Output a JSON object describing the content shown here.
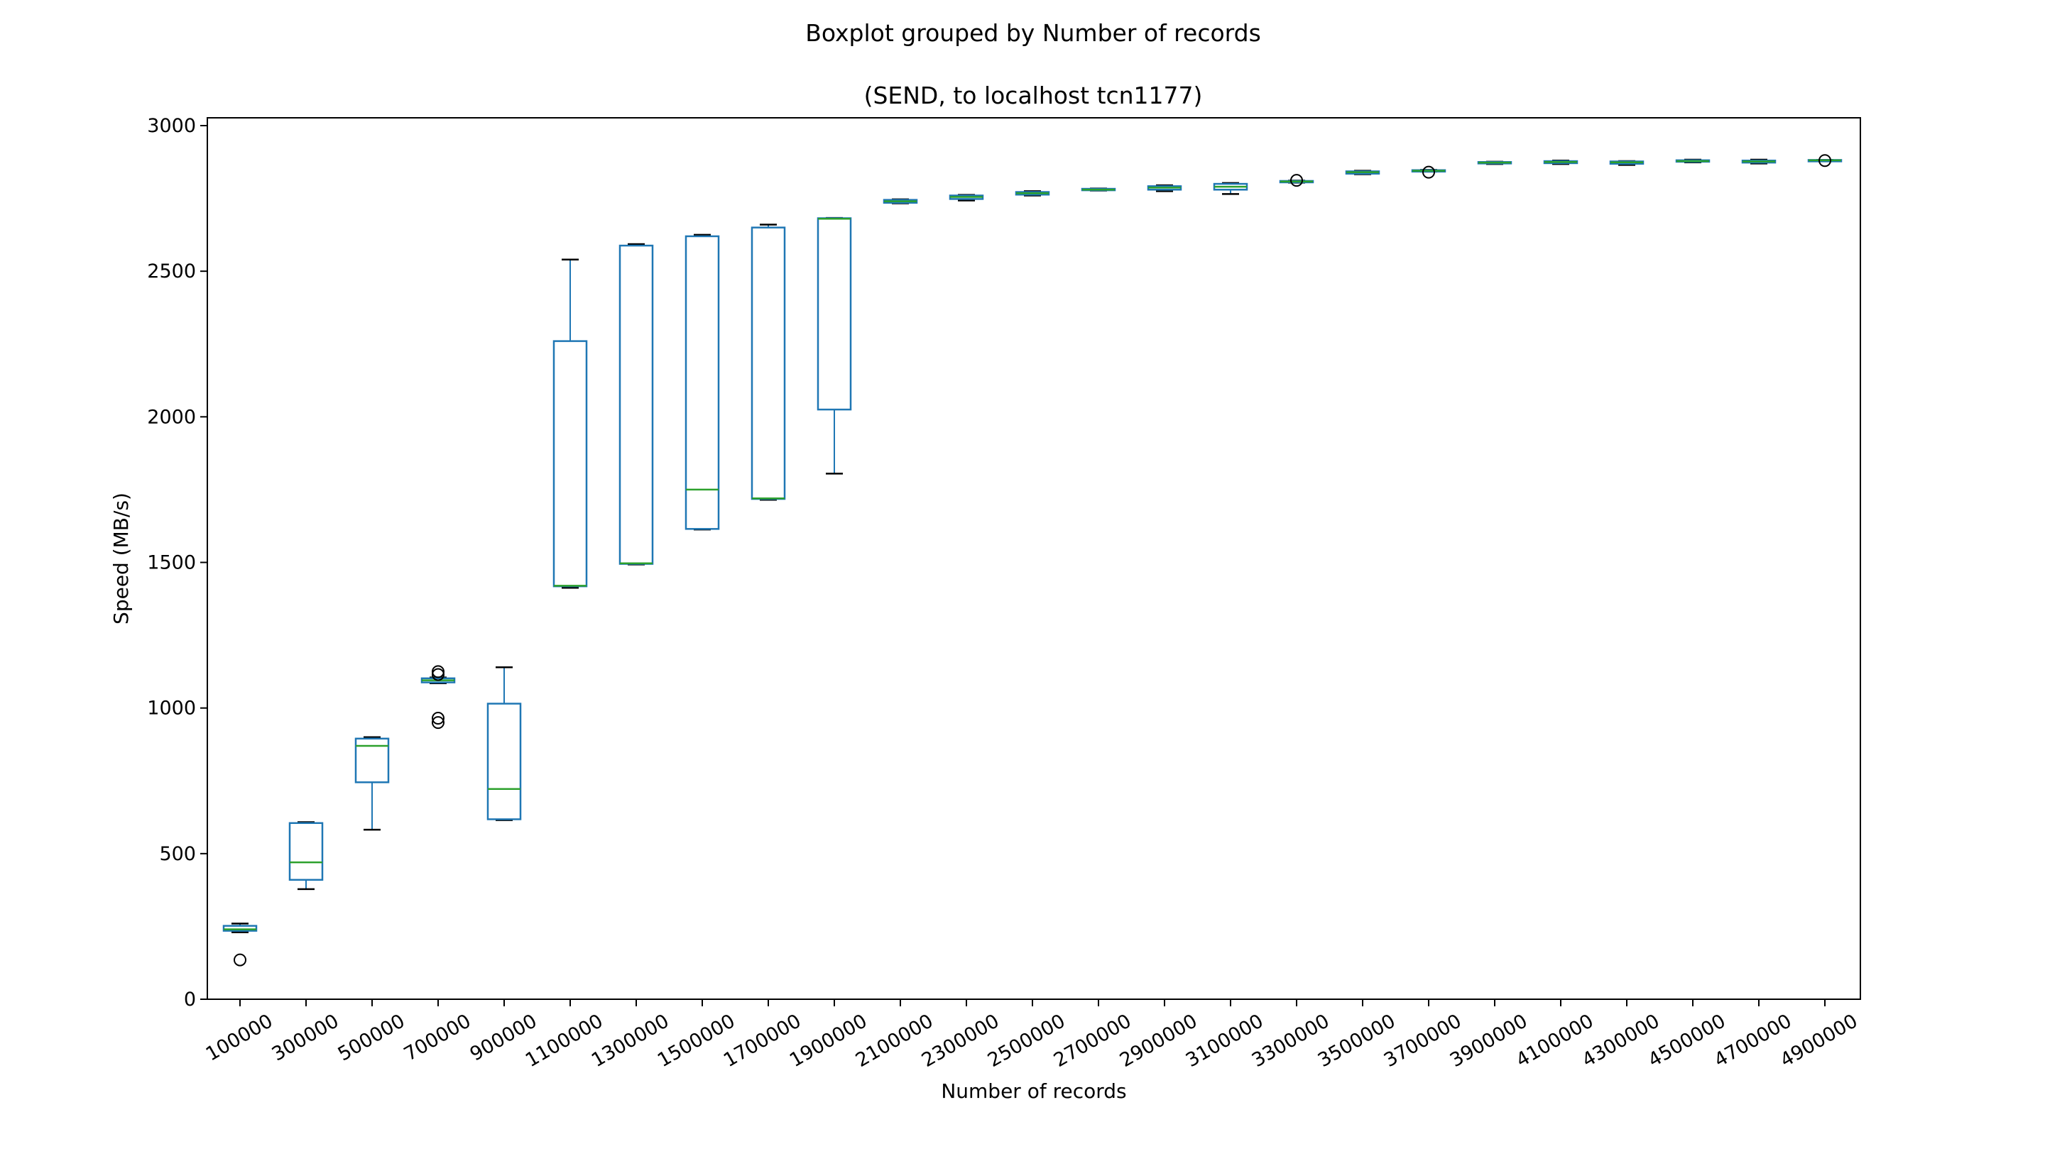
{
  "chart_data": {
    "type": "boxplot",
    "title": "Boxplot grouped by Number of records",
    "subtitle": "(SEND, to localhost tcn1177)",
    "xlabel": "Number of records",
    "ylabel": "Speed (MB/s)",
    "ylim": [
      0,
      3000
    ],
    "yticks": [
      "0",
      "500",
      "1000",
      "1500",
      "2000",
      "2500",
      "3000"
    ],
    "grid": false,
    "colors": {
      "box": "#1f77b4",
      "median": "#2ca02c",
      "whisker": "#1f77b4",
      "cap": "#000000",
      "outlier": "#000000"
    },
    "categories": [
      "100000",
      "300000",
      "500000",
      "700000",
      "900000",
      "1100000",
      "1300000",
      "1500000",
      "1700000",
      "1900000",
      "2100000",
      "2300000",
      "2500000",
      "2700000",
      "2900000",
      "3100000",
      "3300000",
      "3500000",
      "3700000",
      "3900000",
      "4100000",
      "4300000",
      "4500000",
      "4700000",
      "4900000"
    ],
    "boxes": [
      {
        "whislo": 230,
        "q1": 235,
        "med": 240,
        "q3": 252,
        "whishi": 260,
        "fliers": [
          135
        ]
      },
      {
        "whislo": 378,
        "q1": 410,
        "med": 470,
        "q3": 605,
        "whishi": 608,
        "fliers": []
      },
      {
        "whislo": 582,
        "q1": 745,
        "med": 870,
        "q3": 895,
        "whishi": 900,
        "fliers": []
      },
      {
        "whislo": 1085,
        "q1": 1088,
        "med": 1095,
        "q3": 1102,
        "whishi": 1105,
        "fliers": [
          1125,
          1115,
          965,
          950
        ]
      },
      {
        "whislo": 615,
        "q1": 618,
        "med": 722,
        "q3": 1015,
        "whishi": 1140,
        "fliers": []
      },
      {
        "whislo": 1413,
        "q1": 1418,
        "med": 1420,
        "q3": 2260,
        "whishi": 2540,
        "fliers": []
      },
      {
        "whislo": 1493,
        "q1": 1495,
        "med": 1497,
        "q3": 2588,
        "whishi": 2593,
        "fliers": []
      },
      {
        "whislo": 1613,
        "q1": 1615,
        "med": 1750,
        "q3": 2620,
        "whishi": 2625,
        "fliers": []
      },
      {
        "whislo": 1715,
        "q1": 1718,
        "med": 1720,
        "q3": 2650,
        "whishi": 2660,
        "fliers": []
      },
      {
        "whislo": 1805,
        "q1": 2025,
        "med": 2680,
        "q3": 2682,
        "whishi": 2683,
        "fliers": []
      },
      {
        "whislo": 2733,
        "q1": 2735,
        "med": 2740,
        "q3": 2745,
        "whishi": 2747,
        "fliers": []
      },
      {
        "whislo": 2743,
        "q1": 2748,
        "med": 2755,
        "q3": 2760,
        "whishi": 2762,
        "fliers": []
      },
      {
        "whislo": 2760,
        "q1": 2763,
        "med": 2768,
        "q3": 2772,
        "whishi": 2775,
        "fliers": []
      },
      {
        "whislo": 2777,
        "q1": 2778,
        "med": 2780,
        "q3": 2783,
        "whishi": 2784,
        "fliers": []
      },
      {
        "whislo": 2775,
        "q1": 2780,
        "med": 2787,
        "q3": 2792,
        "whishi": 2795,
        "fliers": []
      },
      {
        "whislo": 2765,
        "q1": 2780,
        "med": 2790,
        "q3": 2800,
        "whishi": 2803,
        "fliers": []
      },
      {
        "whislo": 2804,
        "q1": 2806,
        "med": 2808,
        "q3": 2810,
        "whishi": 2811,
        "fliers": [
          2812
        ]
      },
      {
        "whislo": 2833,
        "q1": 2835,
        "med": 2840,
        "q3": 2843,
        "whishi": 2845,
        "fliers": []
      },
      {
        "whislo": 2842,
        "q1": 2843,
        "med": 2845,
        "q3": 2847,
        "whishi": 2848,
        "fliers": [
          2840
        ]
      },
      {
        "whislo": 2868,
        "q1": 2870,
        "med": 2873,
        "q3": 2875,
        "whishi": 2876,
        "fliers": []
      },
      {
        "whislo": 2868,
        "q1": 2871,
        "med": 2875,
        "q3": 2878,
        "whishi": 2880,
        "fliers": []
      },
      {
        "whislo": 2865,
        "q1": 2869,
        "med": 2874,
        "q3": 2877,
        "whishi": 2878,
        "fliers": []
      },
      {
        "whislo": 2874,
        "q1": 2876,
        "med": 2878,
        "q3": 2881,
        "whishi": 2883,
        "fliers": []
      },
      {
        "whislo": 2870,
        "q1": 2873,
        "med": 2877,
        "q3": 2880,
        "whishi": 2883,
        "fliers": []
      },
      {
        "whislo": 2880,
        "q1": 2880,
        "med": 2881,
        "q3": 2882,
        "whishi": 2882,
        "fliers": [
          2880
        ]
      }
    ]
  }
}
